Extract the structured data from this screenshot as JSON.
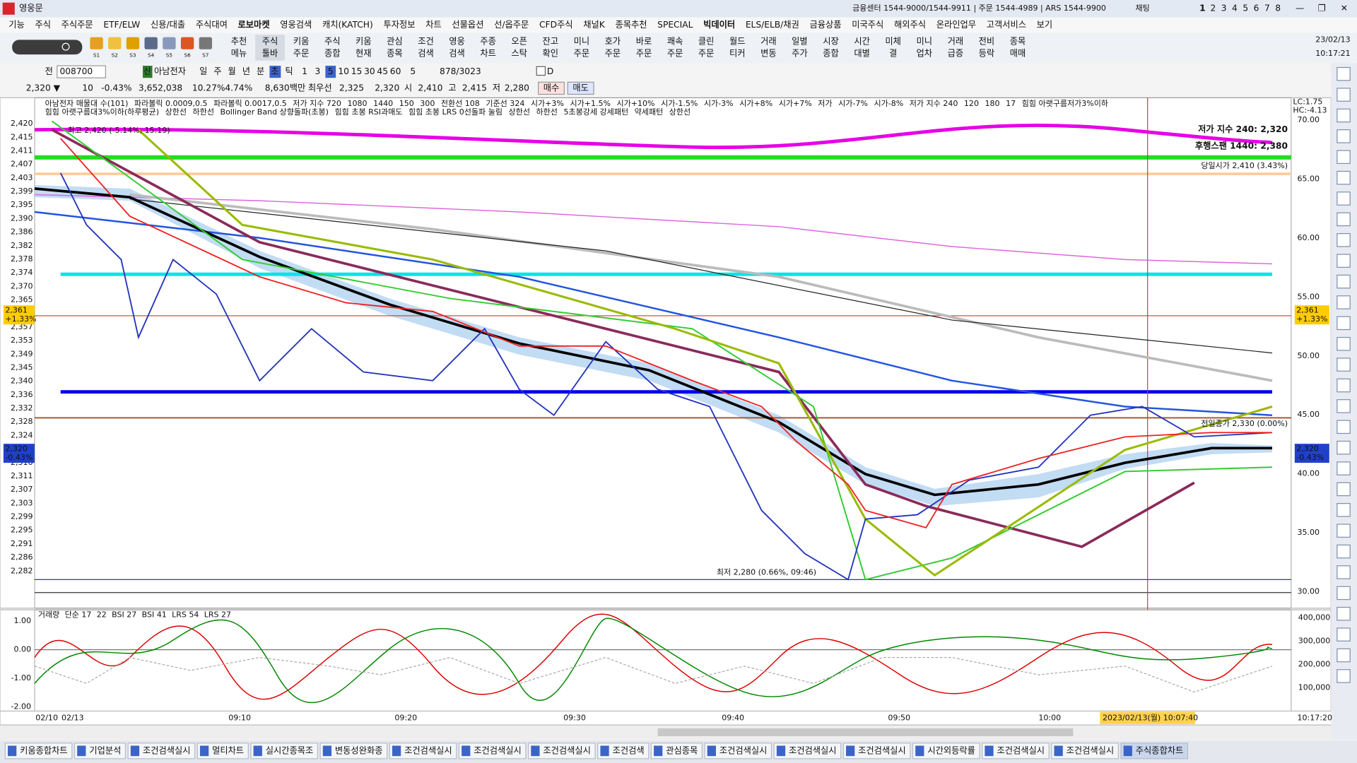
{
  "title_bar": {
    "app": "영웅문",
    "info": "금융센터 1544-9000/1544-9911 | 주문 1544-4989 | ARS 1544-9900",
    "chat": "채팅",
    "screens": [
      "1",
      "2",
      "3",
      "4",
      "5",
      "6",
      "7",
      "8"
    ]
  },
  "menu": [
    "기능",
    "주식",
    "주식주문",
    "ETF/ELW",
    "신용/대출",
    "주식대여",
    "로보마켓",
    "영웅검색",
    "캐치(KATCH)",
    "투자정보",
    "차트",
    "선물옵션",
    "선/옵주문",
    "CFD주식",
    "채널K",
    "종목추천",
    "SPECIAL",
    "빅데이터",
    "ELS/ELB/채권",
    "금융상품",
    "미국주식",
    "해외주식",
    "온라인업무",
    "고객서비스",
    "보기"
  ],
  "toolbar": {
    "icons": [
      "S1",
      "S2",
      "S3",
      "S4",
      "S5",
      "S6",
      "S7"
    ],
    "buttons": [
      [
        "추천",
        "메뉴"
      ],
      [
        "주식",
        "툴바"
      ],
      [
        "키움",
        "주문"
      ],
      [
        "주식",
        "종합"
      ],
      [
        "키움",
        "현재"
      ],
      [
        "관심",
        "종목"
      ],
      [
        "조건",
        "검색"
      ],
      [
        "영웅",
        "검색"
      ],
      [
        "주종",
        "차트"
      ],
      [
        "오픈",
        "스탁"
      ],
      [
        "잔고",
        "확인"
      ],
      [
        "미니",
        "주문"
      ],
      [
        "호가",
        "주문"
      ],
      [
        "바로",
        "주문"
      ],
      [
        "쾌속",
        "주문"
      ],
      [
        "클린",
        "주문"
      ],
      [
        "월드",
        "티커"
      ],
      [
        "거래",
        "변동"
      ],
      [
        "일별",
        "주가"
      ],
      [
        "시장",
        "종합"
      ],
      [
        "시간",
        "대별"
      ],
      [
        "미체",
        "결"
      ],
      [
        "미니",
        "업차"
      ],
      [
        "거래",
        "급증"
      ],
      [
        "전비",
        "등락"
      ],
      [
        "종목",
        "매매"
      ]
    ],
    "date": "23/02/13",
    "time": "10:17:21"
  },
  "chart_toolbar": {
    "field": "전",
    "code": "008700",
    "badge": "신",
    "name": "아남전자",
    "periods": [
      "일",
      "주",
      "월",
      "년",
      "분",
      "초",
      "틱"
    ],
    "minutes": [
      "1",
      "3",
      "5",
      "10",
      "15",
      "30",
      "45",
      "60"
    ],
    "count": "5",
    "range": "878/3023",
    "d": "D"
  },
  "quote": [
    "2,320 ▼",
    "10",
    "-0.43%",
    "3,652,038",
    "10.27%",
    "4.74%",
    "8,630백만",
    "최우선",
    "2,325",
    "2,320",
    "시",
    "2,410",
    "고",
    "2,415",
    "저",
    "2,280"
  ],
  "quote_buttons": [
    "매수",
    "매도"
  ],
  "chart": {
    "legend1": [
      {
        "text": "아남전자 매물대 수(101)",
        "color": "#333333"
      },
      {
        "text": "파라볼릭 0.0009,0.5",
        "color": "#aa0066"
      },
      {
        "text": "파라볼릭 0.0017,0.5",
        "color": "#888800"
      },
      {
        "text": "저가 지수 720",
        "color": "#2244cc"
      },
      {
        "text": "1080",
        "color": "#999999"
      },
      {
        "text": "1440",
        "color": "#111111"
      },
      {
        "text": "150",
        "color": "#cc9900"
      },
      {
        "text": "300",
        "color": "#33aaee"
      },
      {
        "text": "전환선 108",
        "color": "#cc0000"
      },
      {
        "text": "기준선 324",
        "color": "#0000cc"
      },
      {
        "text": "시가+3%",
        "color": "#dd0000"
      },
      {
        "text": "시가+1.5%",
        "color": "#ee7700"
      },
      {
        "text": "시가+10%",
        "color": "#cc0000"
      },
      {
        "text": "시가-1.5%",
        "color": "#3399ff"
      },
      {
        "text": "시가-3%",
        "color": "#0000dd"
      },
      {
        "text": "시가+8%",
        "color": "#dd00aa"
      },
      {
        "text": "시가+7%",
        "color": "#ee66ee"
      },
      {
        "text": "저가",
        "color": "#aaaaaa"
      },
      {
        "text": "시가-7%",
        "color": "#88aaff"
      },
      {
        "text": "시가-8%",
        "color": "#bb77ff"
      },
      {
        "text": "저가 지수 240",
        "color": "#111111"
      },
      {
        "text": "120",
        "color": "#999999"
      },
      {
        "text": "180",
        "color": "#111111"
      },
      {
        "text": "17",
        "color": "#ff66cc"
      },
      {
        "text": "힘힘 아랫구름저가3%이하",
        "color": "#008800"
      }
    ],
    "legend2": [
      {
        "text": "힘힘 아랫구름대3%이하(하루평균)",
        "color": "#cc44cc"
      },
      {
        "text": "상한선",
        "color": "#dd00dd"
      },
      {
        "text": "하한선",
        "color": "#dd00dd"
      },
      {
        "text": "Bollinger Band 상향돌파(초봉)",
        "color": "#996600"
      },
      {
        "text": "힘힘 초봉 RSI과매도",
        "color": "#cc0000"
      },
      {
        "text": "힘힘 초봉 LRS 0선돌파 눌림",
        "color": "#cc00cc"
      },
      {
        "text": "상한선",
        "color": "#dd00dd"
      },
      {
        "text": "하한선",
        "color": "#dd00dd"
      },
      {
        "text": "5초봉강세 강세패턴",
        "color": "#333333"
      },
      {
        "text": "약세패턴",
        "color": "#333333"
      },
      {
        "text": "상한선",
        "color": "#dd00dd"
      }
    ],
    "left_ticks": [
      "2,420",
      "2,415",
      "2,411",
      "2,407",
      "2,403",
      "2,399",
      "2,395",
      "2,390",
      "2,386",
      "2,382",
      "2,378",
      "2,374",
      "2,370",
      "2,365",
      "2,361",
      "2,357",
      "2,353",
      "2,349",
      "2,345",
      "2,340",
      "2,336",
      "2,332",
      "2,328",
      "2,324",
      "2,320",
      "2,316",
      "2,311",
      "2,307",
      "2,303",
      "2,299",
      "2,295",
      "2,291",
      "2,286",
      "2,282"
    ],
    "right_ticks": [
      "70.00",
      "65.00",
      "60.00",
      "55.00",
      "50.00",
      "45.00",
      "40.00",
      "35.00",
      "30.00"
    ],
    "lc": "LC:1.75",
    "hc": "HC:-4.13",
    "high_note": "최고 2,420 (-5.14%, 15:19)",
    "low_note": "최저 2,280 (0.66%, 09:46)",
    "prev_close": "전일종가 2,330 (0.00%)",
    "open_note": "당일시가 2,410 (3.43%)",
    "low_index": "저가 지수 240: 2,320",
    "lagging": "후행스팬 1440: 2,380",
    "left_badge": [
      "2,361",
      "+1.33%"
    ],
    "right_badge": [
      "2,361",
      "+1.33%"
    ],
    "price_badge": [
      "2,320",
      "-0.43%"
    ],
    "left_price_badge": [
      "2,320",
      "-0.43%"
    ]
  },
  "indicator": {
    "legend": [
      {
        "text": "거래량",
        "color": "#888888"
      },
      {
        "text": "단순 17",
        "color": "#00bb00"
      },
      {
        "text": "22",
        "color": "#dddd00"
      },
      {
        "text": "BSI 27",
        "color": "#aaaaaa"
      },
      {
        "text": "BSI 41",
        "color": "#bbbbbb"
      },
      {
        "text": "LRS 54",
        "color": "#008800"
      },
      {
        "text": "LRS 27",
        "color": "#dd0000"
      }
    ],
    "left_ticks": [
      "1.00",
      "0.00",
      "-1.00",
      "-2.00"
    ],
    "right_ticks": [
      "400,000",
      "300,000",
      "200,000",
      "100,000"
    ]
  },
  "time_axis": [
    "02/10",
    "02/13",
    "09:10",
    "09:20",
    "09:30",
    "09:40",
    "09:50",
    "10:00"
  ],
  "cursor_time": "2023/02/13(월) 10:07:40",
  "end_time": "10:17:20",
  "tabs": [
    "키움종합차트",
    "기업분석",
    "조건검색실시",
    "멀티차트",
    "실시간종목조",
    "변동성완화종",
    "조건검색실시",
    "조건검색실시",
    "조건검색실시",
    "조건검색",
    "관심종목",
    "조건검색실시",
    "조건검색실시",
    "조건검색실시",
    "시간외등락률",
    "조건검색실시",
    "조건검색실시",
    "주식종합차트"
  ]
}
